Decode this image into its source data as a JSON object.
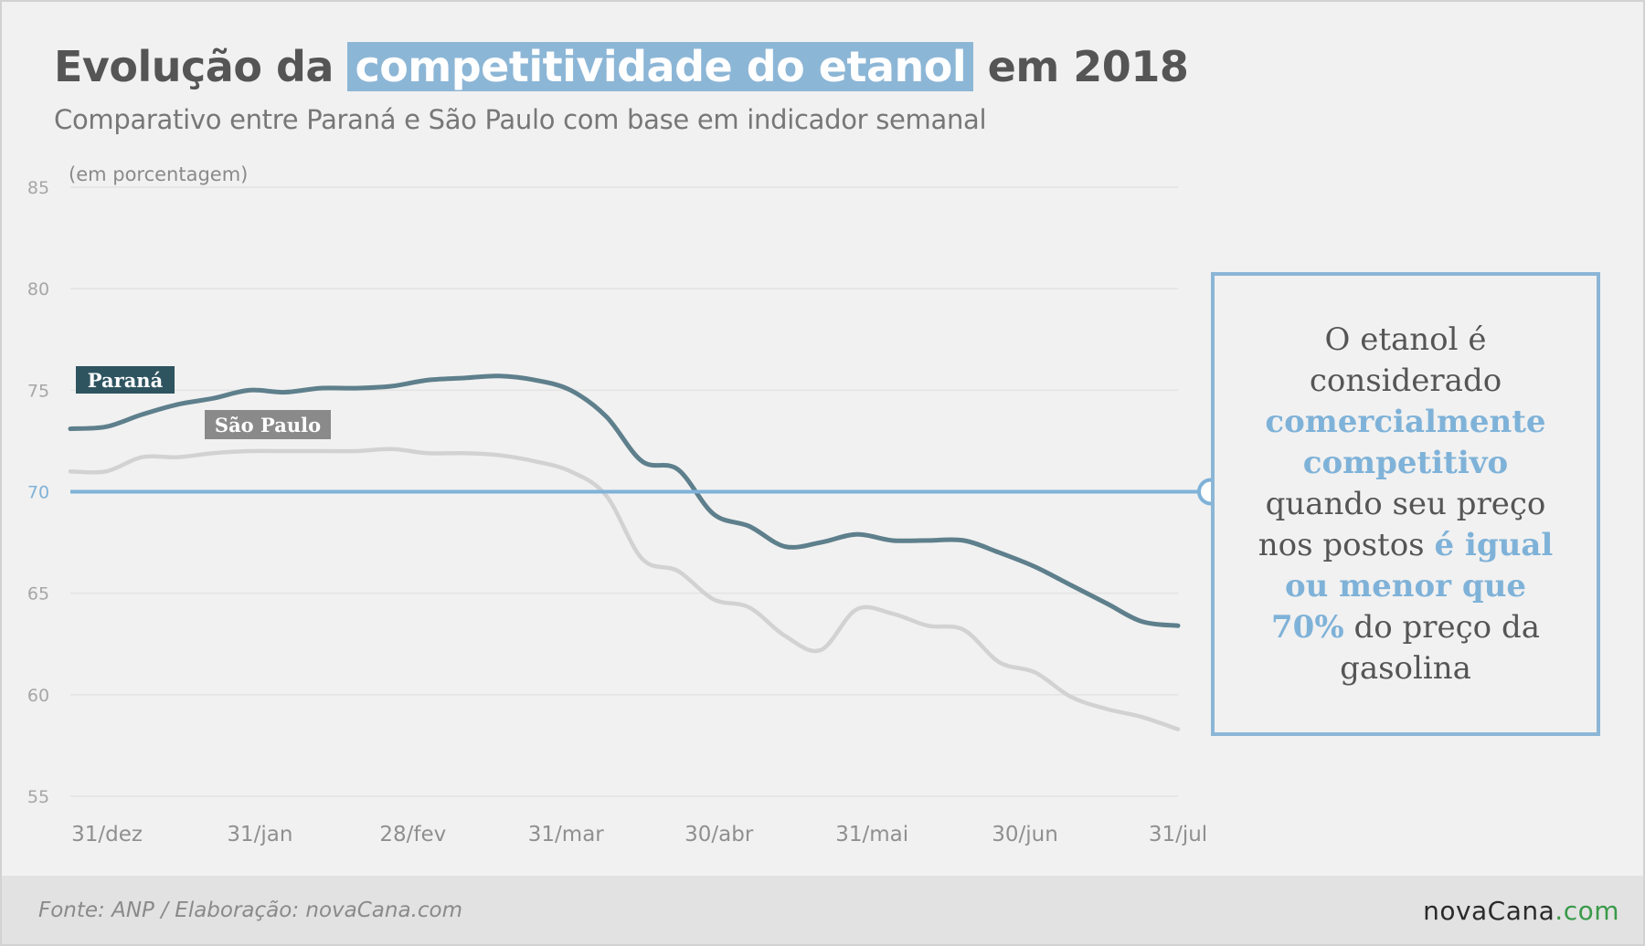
{
  "header": {
    "title_pre": "Evolução da",
    "title_highlight": "competitividade do etanol",
    "title_post": "em 2018",
    "subtitle": "Comparativo entre Paraná e São Paulo com base em indicador semanal"
  },
  "callout": {
    "line1": "O etanol é",
    "line2": "considerado",
    "line3": "comercialmente",
    "line4": "competitivo",
    "line5": "quando seu preço",
    "line6_a": "nos postos",
    "line6_b": "é igual",
    "line7": "ou menor que",
    "line8_a": "70%",
    "line8_b": "do preço da",
    "line9": "gasolina"
  },
  "footer": {
    "source": "Fonte: ANP  / Elaboração: novaCana.com",
    "brand_main": "novaCana",
    "brand_suffix": ".com"
  },
  "colors": {
    "parana": "#5e7f8c",
    "sao_paulo": "#d2d2d2",
    "reference": "#7fb2d8",
    "parana_label_bg": "#2e5460",
    "sp_label_bg": "#8a8a8a",
    "grid": "#e3e3e3"
  },
  "chart_data": {
    "type": "line",
    "unit_label": "(em porcentagem)",
    "x_ticks": [
      "31/dez",
      "31/jan",
      "28/fev",
      "31/mar",
      "30/abr",
      "31/mai",
      "30/jun",
      "31/jul"
    ],
    "y_ticks": [
      "85",
      "80",
      "75",
      "70",
      "65",
      "60",
      "55"
    ],
    "ylim": [
      55,
      85
    ],
    "reference_line": {
      "value": 70,
      "label": "70"
    },
    "grid": true,
    "series": [
      {
        "name": "Paraná",
        "values": [
          73.1,
          73.2,
          73.8,
          74.3,
          74.6,
          75.0,
          74.9,
          75.1,
          75.1,
          75.2,
          75.5,
          75.6,
          75.7,
          75.5,
          75.0,
          73.7,
          71.5,
          71.1,
          68.9,
          68.3,
          67.3,
          67.5,
          67.9,
          67.6,
          67.6,
          67.6,
          67.0,
          66.3,
          65.4,
          64.5,
          63.6,
          63.4
        ]
      },
      {
        "name": "São Paulo",
        "values": [
          71.0,
          71.0,
          71.7,
          71.7,
          71.9,
          72.0,
          72.0,
          72.0,
          72.0,
          72.1,
          71.9,
          71.9,
          71.8,
          71.5,
          71.0,
          69.8,
          66.7,
          66.1,
          64.7,
          64.3,
          62.9,
          62.2,
          64.2,
          64.0,
          63.4,
          63.2,
          61.6,
          61.1,
          59.9,
          59.3,
          58.9,
          58.3
        ]
      }
    ]
  }
}
